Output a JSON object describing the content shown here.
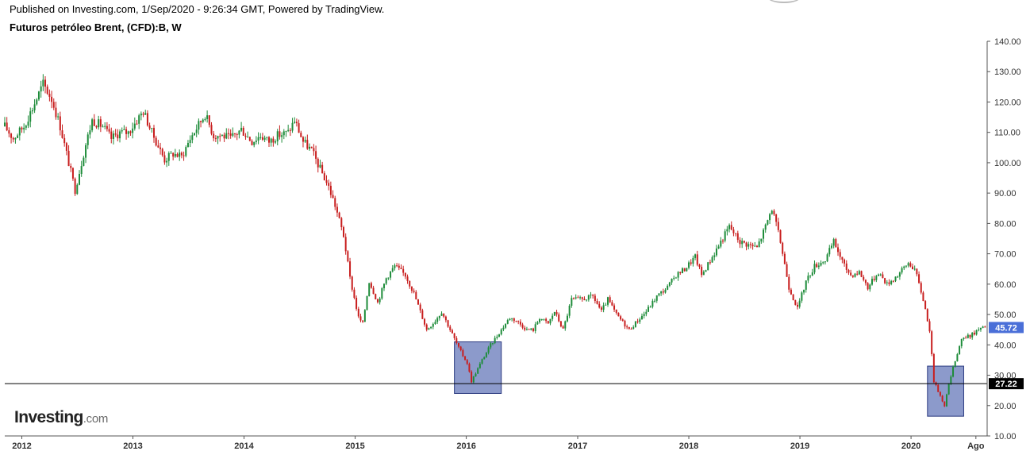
{
  "header": {
    "published": "Published on Investing.com, 1/Sep/2020 - 9:26:34 GMT, Powered by TradingView.",
    "symbol": "Futuros petróleo Brent, (CFD):B, W"
  },
  "brand": {
    "main": "Investing",
    "suffix": ".com"
  },
  "colors": {
    "up": "#1e8c3a",
    "down": "#c81e1e",
    "highlight_fill": "#8c9acb",
    "highlight_stroke": "#2b3a80",
    "price_badge": "#4a6fd8",
    "level_badge": "#000000",
    "axis": "#555555"
  },
  "chart_data": {
    "type": "candlestick",
    "interval": "weekly",
    "ylim": [
      10,
      140
    ],
    "y_ticks": [
      10,
      20,
      30,
      40,
      50,
      60,
      70,
      80,
      90,
      100,
      110,
      120,
      130,
      140
    ],
    "y_tick_labels": [
      "10.00",
      "20.00",
      "30.00",
      "40.00",
      "50.00",
      "60.00",
      "70.00",
      "80.00",
      "90.00",
      "100.00",
      "110.00",
      "120.00",
      "130.00",
      "140.00"
    ],
    "x_range": [
      "2011-11-07",
      "2020-09-07"
    ],
    "x_ticks": [
      {
        "date": "2012-01-02",
        "label": "2012"
      },
      {
        "date": "2013-01-01",
        "label": "2013"
      },
      {
        "date": "2014-01-01",
        "label": "2014"
      },
      {
        "date": "2015-01-01",
        "label": "2015"
      },
      {
        "date": "2016-01-01",
        "label": "2016"
      },
      {
        "date": "2017-01-01",
        "label": "2017"
      },
      {
        "date": "2018-01-01",
        "label": "2018"
      },
      {
        "date": "2019-01-01",
        "label": "2019"
      },
      {
        "date": "2020-01-01",
        "label": "2020"
      },
      {
        "date": "2020-08-01",
        "label": "Ago"
      }
    ],
    "close_path": [
      [
        "2011-11-07",
        112
      ],
      [
        "2011-12-05",
        108
      ],
      [
        "2012-01-09",
        112
      ],
      [
        "2012-02-06",
        118
      ],
      [
        "2012-03-12",
        126
      ],
      [
        "2012-04-09",
        121
      ],
      [
        "2012-05-07",
        112
      ],
      [
        "2012-06-11",
        97
      ],
      [
        "2012-06-25",
        91
      ],
      [
        "2012-07-30",
        106
      ],
      [
        "2012-08-20",
        114
      ],
      [
        "2012-09-24",
        112
      ],
      [
        "2012-10-22",
        108
      ],
      [
        "2012-11-19",
        110
      ],
      [
        "2012-12-17",
        110
      ],
      [
        "2013-02-04",
        117
      ],
      [
        "2013-03-04",
        110
      ],
      [
        "2013-04-15",
        101
      ],
      [
        "2013-05-13",
        103
      ],
      [
        "2013-06-10",
        102
      ],
      [
        "2013-07-08",
        108
      ],
      [
        "2013-08-26",
        116
      ],
      [
        "2013-09-23",
        109
      ],
      [
        "2013-10-21",
        109
      ],
      [
        "2013-11-18",
        108
      ],
      [
        "2013-12-23",
        111
      ],
      [
        "2014-01-27",
        107
      ],
      [
        "2014-02-24",
        109
      ],
      [
        "2014-03-24",
        107
      ],
      [
        "2014-04-21",
        109
      ],
      [
        "2014-05-26",
        110
      ],
      [
        "2014-06-16",
        114
      ],
      [
        "2014-07-14",
        107
      ],
      [
        "2014-08-11",
        104
      ],
      [
        "2014-09-08",
        98
      ],
      [
        "2014-10-06",
        92
      ],
      [
        "2014-10-27",
        86
      ],
      [
        "2014-11-24",
        76
      ],
      [
        "2014-12-15",
        62
      ],
      [
        "2015-01-12",
        49
      ],
      [
        "2015-01-26",
        47
      ],
      [
        "2015-02-16",
        61
      ],
      [
        "2015-03-16",
        54
      ],
      [
        "2015-04-13",
        62
      ],
      [
        "2015-05-11",
        66
      ],
      [
        "2015-06-15",
        63
      ],
      [
        "2015-07-13",
        57
      ],
      [
        "2015-08-24",
        45
      ],
      [
        "2015-09-21",
        48
      ],
      [
        "2015-10-12",
        51
      ],
      [
        "2015-11-09",
        45
      ],
      [
        "2015-12-07",
        39
      ],
      [
        "2016-01-04",
        34
      ],
      [
        "2016-01-18",
        28
      ],
      [
        "2016-02-22",
        35
      ],
      [
        "2016-03-21",
        40
      ],
      [
        "2016-04-18",
        44
      ],
      [
        "2016-05-23",
        49
      ],
      [
        "2016-06-13",
        48
      ],
      [
        "2016-07-18",
        45
      ],
      [
        "2016-08-08",
        45
      ],
      [
        "2016-08-29",
        49
      ],
      [
        "2016-09-26",
        47
      ],
      [
        "2016-10-17",
        51
      ],
      [
        "2016-11-14",
        45
      ],
      [
        "2016-12-12",
        55
      ],
      [
        "2017-01-16",
        55
      ],
      [
        "2017-02-20",
        56
      ],
      [
        "2017-03-20",
        51
      ],
      [
        "2017-04-10",
        55
      ],
      [
        "2017-05-08",
        50
      ],
      [
        "2017-06-19",
        45
      ],
      [
        "2017-07-17",
        48
      ],
      [
        "2017-08-14",
        51
      ],
      [
        "2017-09-18",
        56
      ],
      [
        "2017-10-23",
        59
      ],
      [
        "2017-11-20",
        63
      ],
      [
        "2017-12-18",
        65
      ],
      [
        "2018-01-22",
        69
      ],
      [
        "2018-02-12",
        63
      ],
      [
        "2018-03-19",
        69
      ],
      [
        "2018-04-16",
        74
      ],
      [
        "2018-05-14",
        79
      ],
      [
        "2018-06-18",
        74
      ],
      [
        "2018-07-16",
        73
      ],
      [
        "2018-08-13",
        72
      ],
      [
        "2018-09-10",
        79
      ],
      [
        "2018-10-01",
        85
      ],
      [
        "2018-10-29",
        74
      ],
      [
        "2018-11-26",
        59
      ],
      [
        "2018-12-24",
        52
      ],
      [
        "2019-01-21",
        61
      ],
      [
        "2019-02-18",
        66
      ],
      [
        "2019-03-25",
        68
      ],
      [
        "2019-04-22",
        74
      ],
      [
        "2019-05-27",
        66
      ],
      [
        "2019-06-17",
        63
      ],
      [
        "2019-07-15",
        64
      ],
      [
        "2019-08-12",
        59
      ],
      [
        "2019-09-16",
        64
      ],
      [
        "2019-10-14",
        60
      ],
      [
        "2019-11-18",
        63
      ],
      [
        "2019-12-23",
        67
      ],
      [
        "2020-01-13",
        65
      ],
      [
        "2020-02-10",
        55
      ],
      [
        "2020-03-02",
        45
      ],
      [
        "2020-03-16",
        28
      ],
      [
        "2020-04-20",
        20
      ],
      [
        "2020-05-04",
        27
      ],
      [
        "2020-05-25",
        35
      ],
      [
        "2020-06-15",
        42
      ],
      [
        "2020-07-13",
        43
      ],
      [
        "2020-08-10",
        45
      ],
      [
        "2020-08-31",
        45.72
      ]
    ],
    "last_price": {
      "value": 45.72,
      "label": "45.72"
    },
    "horizontal_line": {
      "value": 27.22,
      "label": "27.22"
    },
    "highlight_boxes": [
      {
        "x0": "2015-11-23",
        "x1": "2016-04-25",
        "y0": 24,
        "y1": 41
      },
      {
        "x0": "2020-02-24",
        "x1": "2020-06-22",
        "y0": 16.5,
        "y1": 33
      }
    ]
  }
}
